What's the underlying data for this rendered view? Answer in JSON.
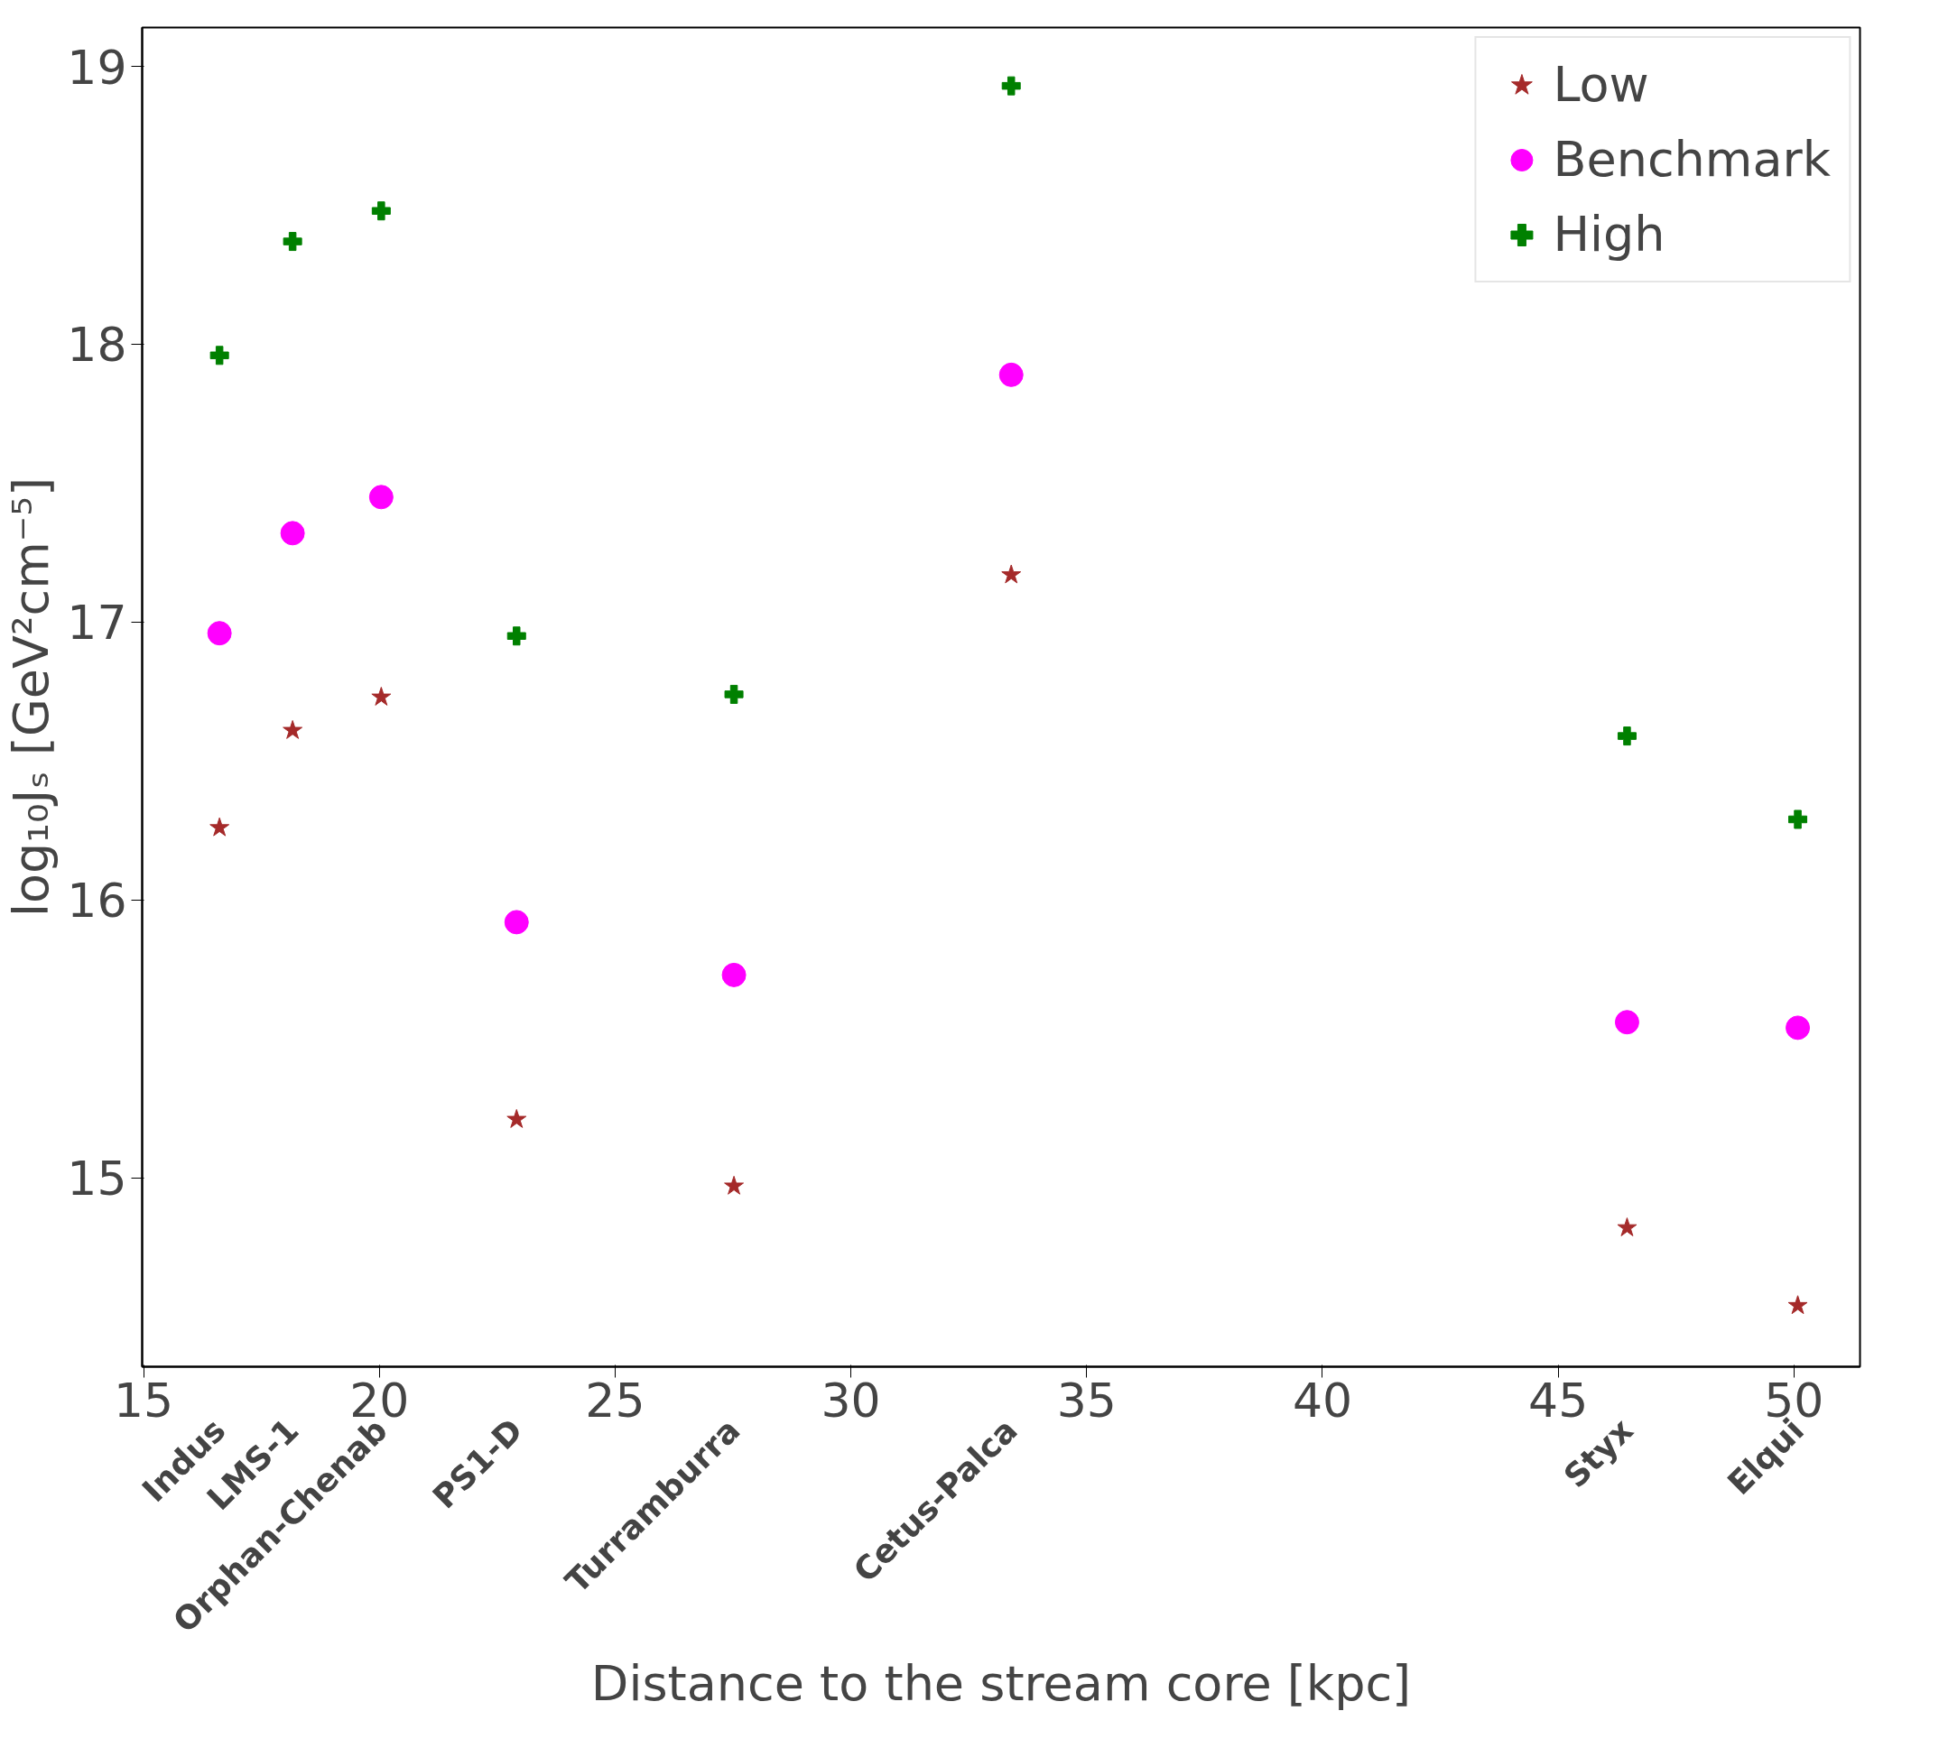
{
  "chart_data": {
    "type": "scatter",
    "xlabel": "Distance to the stream core [kpc]",
    "ylabel": "log₁₀Jₛ [GeV²cm⁻⁵]",
    "x": [
      16.61,
      18.16,
      20.04,
      22.91,
      27.52,
      33.4,
      46.46,
      50.08
    ],
    "series": [
      {
        "name": "Low",
        "color": "#a52a2a",
        "marker": "star",
        "values": [
          16.26,
          16.61,
          16.73,
          15.21,
          14.97,
          17.17,
          14.82,
          14.54
        ]
      },
      {
        "name": "Benchmark",
        "color": "#ff00ff",
        "marker": "circle",
        "values": [
          16.96,
          17.32,
          17.45,
          15.92,
          15.73,
          17.89,
          15.56,
          15.54
        ]
      },
      {
        "name": "High",
        "color": "#008000",
        "marker": "cross",
        "values": [
          17.96,
          18.37,
          18.48,
          16.95,
          16.74,
          18.93,
          16.59,
          16.29
        ]
      }
    ],
    "annotations": [
      "Indus",
      "LMS-1",
      "Orphan-Chenab",
      "PS1-D",
      "Turramburra",
      "Cetus-Palca",
      "Styx",
      "Elqui"
    ],
    "xlim": [
      14.97,
      51.4
    ],
    "ylim": [
      14.32,
      19.14
    ],
    "xticks": [
      15,
      20,
      25,
      30,
      35,
      40,
      45,
      50
    ],
    "yticks": [
      15,
      16,
      17,
      18,
      19
    ],
    "grid": false,
    "legend": "top right"
  }
}
